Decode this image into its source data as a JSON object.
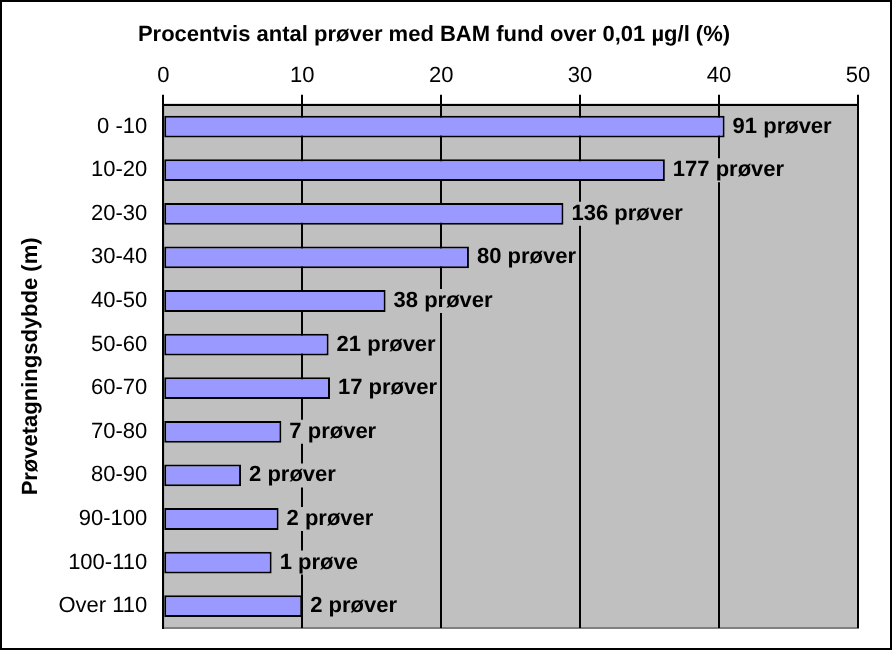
{
  "chart_data": {
    "type": "bar",
    "orientation": "horizontal",
    "title": "Procentvis antal prøver med BAM fund over 0,01 µg/l (%)",
    "ylabel": "Prøvetagningsdybde (m)",
    "categories": [
      "0 -10",
      "10-20",
      "20-30",
      "30-40",
      "40-50",
      "50-60",
      "60-70",
      "70-80",
      "80-90",
      "90-100",
      "100-110",
      "Over 110"
    ],
    "values": [
      40.4,
      36.1,
      28.8,
      22.0,
      16.0,
      11.9,
      12.0,
      8.5,
      5.6,
      8.3,
      7.8,
      10.0
    ],
    "annotations": [
      {
        "text": "91 prøver",
        "x": 40.4,
        "y": "0 -10"
      },
      {
        "text": "177 prøver",
        "x": 36.1,
        "y": "10-20"
      },
      {
        "text": "136 prøver",
        "x": 28.8,
        "y": "20-30"
      },
      {
        "text": "80 prøver",
        "x": 22.0,
        "y": "30-40"
      },
      {
        "text": "38 prøver",
        "x": 16.0,
        "y": "40-50"
      },
      {
        "text": "21 prøver",
        "x": 11.9,
        "y": "50-60"
      },
      {
        "text": "17 prøver",
        "x": 12.0,
        "y": "60-70"
      },
      {
        "text": "7 prøver",
        "x": 8.5,
        "y": "70-80"
      },
      {
        "text": "2 prøver",
        "x": 5.6,
        "y": "80-90"
      },
      {
        "text": "2 prøver",
        "x": 8.3,
        "y": "90-100"
      },
      {
        "text": "1 prøve",
        "x": 7.8,
        "y": "100-110"
      },
      {
        "text": "2 prøver",
        "x": 10.0,
        "y": "Over 110"
      }
    ],
    "color": "#9999ff",
    "xlim": [
      0,
      50
    ],
    "xticks": [
      0,
      10,
      20,
      30,
      40,
      50
    ],
    "grid": "x",
    "legend": false
  }
}
